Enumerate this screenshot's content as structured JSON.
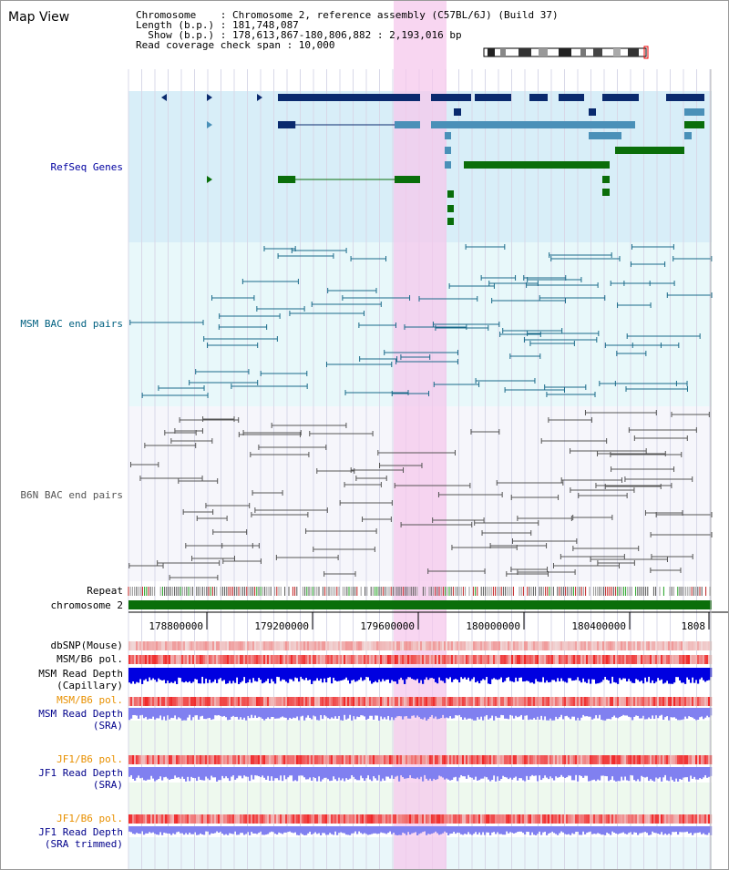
{
  "title": "Map View",
  "info": {
    "chromosome": "Chromosome    : Chromosome 2, reference assembly (C57BL/6J) (Build 37)",
    "length": "Length (b.p.) : 181,748,087",
    "show": "  Show (b.p.) : 178,613,867-180,806,882 : 2,193,016 bp",
    "coverage": "Read coverage check span : 10,000"
  },
  "tracks": {
    "refseq": "RefSeq Genes",
    "msm_bac": "MSM BAC end pairs",
    "b6n_bac": "B6N BAC end pairs",
    "repeat": "Repeat",
    "chromosome": "chromosome 2",
    "dbsnp": "dbSNP(Mouse)",
    "msm_pol": "MSM/B6 pol.",
    "msm_depth_cap_1": "MSM Read Depth",
    "msm_depth_cap_2": "(Capillary)",
    "msm_pol_2": "MSM/B6 pol.",
    "msm_depth_sra_1": "MSM Read Depth",
    "msm_depth_sra_2": "(SRA)",
    "jf1_pol": "JF1/B6 pol.",
    "jf1_depth_sra_1": "JF1 Read Depth",
    "jf1_depth_sra_2": "(SRA)",
    "jf1_pol_2": "JF1/B6 pol.",
    "jf1_depth_trim_1": "JF1 Read Depth",
    "jf1_depth_trim_2": "(SRA trimmed)"
  },
  "ruler": {
    "ticks": [
      "178800000",
      "179200000",
      "179600000",
      "180000000",
      "180400000",
      "1808"
    ]
  },
  "colors": {
    "refseq_dark": "#0a2a6e",
    "refseq_light": "#4a90b8",
    "refseq_green": "#0a6e0a",
    "msm_bac": "#1a6a8a",
    "b6n_bac": "#555555",
    "highlight": "#f6c8ec",
    "chrom_band": "#0a6e0a",
    "heat_red": "#f03030",
    "depth_blue": "#0000e0",
    "depth_lavender": "#8080f0",
    "label_blue": "#00008b",
    "label_teal": "#006080",
    "label_orange": "#e89000"
  }
}
